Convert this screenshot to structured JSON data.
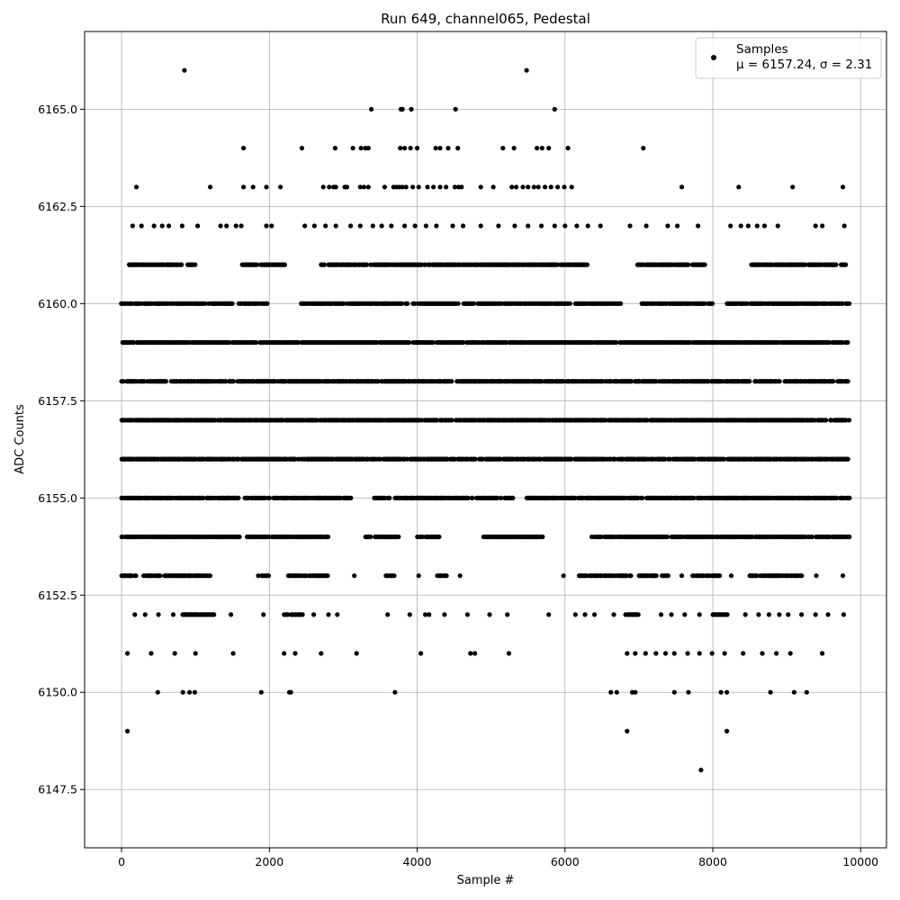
{
  "chart_data": {
    "type": "scatter",
    "title": "Run 649, channel065, Pedestal",
    "xlabel": "Sample #",
    "ylabel": "ADC Counts",
    "xlim": [
      -500,
      10350
    ],
    "ylim": [
      6146.0,
      6167.0
    ],
    "xticks": [
      0,
      2000,
      4000,
      6000,
      8000,
      10000
    ],
    "xtick_labels": [
      "0",
      "2000",
      "4000",
      "6000",
      "8000",
      "10000"
    ],
    "yticks": [
      6147.5,
      6150.0,
      6152.5,
      6155.0,
      6157.5,
      6160.0,
      6162.5,
      6165.0
    ],
    "ytick_labels": [
      "6147.5",
      "6150.0",
      "6152.5",
      "6155.0",
      "6157.5",
      "6160.0",
      "6162.5",
      "6165.0"
    ],
    "grid": true,
    "legend_position": "top-right",
    "marker_color": "#000000",
    "series": [
      {
        "name": "Samples",
        "legend_line2": "μ = 6157.24, σ = 2.31",
        "points": [
          [
            850,
            6166
          ],
          [
            5480,
            6166
          ],
          [
            3380,
            6165
          ],
          [
            3780,
            6165
          ],
          [
            3800,
            6165
          ],
          [
            3920,
            6165
          ],
          [
            4520,
            6165
          ],
          [
            5860,
            6165
          ],
          [
            1650,
            6164
          ],
          [
            2440,
            6164
          ],
          [
            2890,
            6164
          ],
          [
            3130,
            6164
          ],
          [
            3240,
            6164
          ],
          [
            3300,
            6164
          ],
          [
            3340,
            6164
          ],
          [
            3770,
            6164
          ],
          [
            3830,
            6164
          ],
          [
            3910,
            6164
          ],
          [
            4000,
            6164
          ],
          [
            4250,
            6164
          ],
          [
            4310,
            6164
          ],
          [
            4420,
            6164
          ],
          [
            4550,
            6164
          ],
          [
            5160,
            6164
          ],
          [
            5310,
            6164
          ],
          [
            5620,
            6164
          ],
          [
            5690,
            6164
          ],
          [
            5780,
            6164
          ],
          [
            6040,
            6164
          ],
          [
            7060,
            6164
          ],
          [
            200,
            6163
          ],
          [
            1200,
            6163
          ],
          [
            1650,
            6163
          ],
          [
            1780,
            6163
          ],
          [
            1960,
            6163
          ],
          [
            2150,
            6163
          ],
          [
            2730,
            6163
          ],
          [
            2810,
            6163
          ],
          [
            2870,
            6163
          ],
          [
            2900,
            6163
          ],
          [
            3020,
            6163
          ],
          [
            3050,
            6163
          ],
          [
            3230,
            6163
          ],
          [
            3280,
            6163
          ],
          [
            3340,
            6163
          ],
          [
            3560,
            6163
          ],
          [
            3680,
            6163
          ],
          [
            3720,
            6163
          ],
          [
            3760,
            6163
          ],
          [
            3800,
            6163
          ],
          [
            3850,
            6163
          ],
          [
            3940,
            6163
          ],
          [
            4020,
            6163
          ],
          [
            4140,
            6163
          ],
          [
            4220,
            6163
          ],
          [
            4310,
            6163
          ],
          [
            4390,
            6163
          ],
          [
            4510,
            6163
          ],
          [
            4560,
            6163
          ],
          [
            4600,
            6163
          ],
          [
            4860,
            6163
          ],
          [
            5030,
            6163
          ],
          [
            5280,
            6163
          ],
          [
            5340,
            6163
          ],
          [
            5430,
            6163
          ],
          [
            5500,
            6163
          ],
          [
            5580,
            6163
          ],
          [
            5640,
            6163
          ],
          [
            5730,
            6163
          ],
          [
            5810,
            6163
          ],
          [
            5900,
            6163
          ],
          [
            5990,
            6163
          ],
          [
            6090,
            6163
          ],
          [
            7580,
            6163
          ],
          [
            8350,
            6163
          ],
          [
            9080,
            6163
          ],
          [
            9760,
            6163
          ],
          [
            150,
            6162
          ],
          [
            270,
            6162
          ],
          [
            440,
            6162
          ],
          [
            550,
            6162
          ],
          [
            640,
            6162
          ],
          [
            820,
            6162
          ],
          [
            1030,
            6162
          ],
          [
            1340,
            6162
          ],
          [
            1420,
            6162
          ],
          [
            1550,
            6162
          ],
          [
            1620,
            6162
          ],
          [
            1960,
            6162
          ],
          [
            2030,
            6162
          ],
          [
            2480,
            6162
          ],
          [
            2610,
            6162
          ],
          [
            2760,
            6162
          ],
          [
            2900,
            6162
          ],
          [
            3100,
            6162
          ],
          [
            3230,
            6162
          ],
          [
            3400,
            6162
          ],
          [
            3520,
            6162
          ],
          [
            3650,
            6162
          ],
          [
            3830,
            6162
          ],
          [
            3970,
            6162
          ],
          [
            4120,
            6162
          ],
          [
            4260,
            6162
          ],
          [
            4480,
            6162
          ],
          [
            4620,
            6162
          ],
          [
            4860,
            6162
          ],
          [
            5100,
            6162
          ],
          [
            5320,
            6162
          ],
          [
            5500,
            6162
          ],
          [
            5680,
            6162
          ],
          [
            5860,
            6162
          ],
          [
            6000,
            6162
          ],
          [
            6160,
            6162
          ],
          [
            6310,
            6162
          ],
          [
            6480,
            6162
          ],
          [
            6880,
            6162
          ],
          [
            7100,
            6162
          ],
          [
            7390,
            6162
          ],
          [
            7520,
            6162
          ],
          [
            7800,
            6162
          ],
          [
            8240,
            6162
          ],
          [
            8380,
            6162
          ],
          [
            8480,
            6162
          ],
          [
            8600,
            6162
          ],
          [
            8700,
            6162
          ],
          [
            8880,
            6162
          ],
          [
            9390,
            6162
          ],
          [
            9480,
            6162
          ],
          [
            9780,
            6162
          ],
          [
            850,
            6153
          ],
          [
            1850,
            6153
          ],
          [
            3150,
            6153
          ],
          [
            4020,
            6153
          ],
          [
            4580,
            6153
          ],
          [
            5980,
            6153
          ],
          [
            7580,
            6153
          ],
          [
            8250,
            6153
          ],
          [
            9400,
            6153
          ],
          [
            9760,
            6153
          ],
          [
            180,
            6152
          ],
          [
            320,
            6152
          ],
          [
            500,
            6152
          ],
          [
            700,
            6152
          ],
          [
            860,
            6152
          ],
          [
            1000,
            6152
          ],
          [
            1180,
            6152
          ],
          [
            1480,
            6152
          ],
          [
            1920,
            6152
          ],
          [
            2200,
            6152
          ],
          [
            2350,
            6152
          ],
          [
            2600,
            6152
          ],
          [
            2800,
            6152
          ],
          [
            2920,
            6152
          ],
          [
            3600,
            6152
          ],
          [
            3900,
            6152
          ],
          [
            4110,
            6152
          ],
          [
            4160,
            6152
          ],
          [
            4370,
            6152
          ],
          [
            4680,
            6152
          ],
          [
            4980,
            6152
          ],
          [
            5220,
            6152
          ],
          [
            5780,
            6152
          ],
          [
            6140,
            6152
          ],
          [
            6270,
            6152
          ],
          [
            6400,
            6152
          ],
          [
            6660,
            6152
          ],
          [
            6820,
            6152
          ],
          [
            6950,
            6152
          ],
          [
            7300,
            6152
          ],
          [
            7440,
            6152
          ],
          [
            7620,
            6152
          ],
          [
            7820,
            6152
          ],
          [
            8020,
            6152
          ],
          [
            8440,
            6152
          ],
          [
            8620,
            6152
          ],
          [
            8760,
            6152
          ],
          [
            8900,
            6152
          ],
          [
            9020,
            6152
          ],
          [
            9200,
            6152
          ],
          [
            9390,
            6152
          ],
          [
            9560,
            6152
          ],
          [
            9770,
            6152
          ],
          [
            80,
            6151
          ],
          [
            400,
            6151
          ],
          [
            720,
            6151
          ],
          [
            1000,
            6151
          ],
          [
            1510,
            6151
          ],
          [
            2200,
            6151
          ],
          [
            2350,
            6151
          ],
          [
            2700,
            6151
          ],
          [
            3180,
            6151
          ],
          [
            4050,
            6151
          ],
          [
            4720,
            6151
          ],
          [
            4780,
            6151
          ],
          [
            5240,
            6151
          ],
          [
            6840,
            6151
          ],
          [
            6950,
            6151
          ],
          [
            7090,
            6151
          ],
          [
            7230,
            6151
          ],
          [
            7360,
            6151
          ],
          [
            7480,
            6151
          ],
          [
            7660,
            6151
          ],
          [
            7820,
            6151
          ],
          [
            7990,
            6151
          ],
          [
            8160,
            6151
          ],
          [
            8410,
            6151
          ],
          [
            8670,
            6151
          ],
          [
            8860,
            6151
          ],
          [
            9050,
            6151
          ],
          [
            9480,
            6151
          ],
          [
            490,
            6150
          ],
          [
            830,
            6150
          ],
          [
            920,
            6150
          ],
          [
            990,
            6150
          ],
          [
            1890,
            6150
          ],
          [
            2270,
            6150
          ],
          [
            2290,
            6150
          ],
          [
            3700,
            6150
          ],
          [
            6620,
            6150
          ],
          [
            6700,
            6150
          ],
          [
            6910,
            6150
          ],
          [
            6950,
            6150
          ],
          [
            7480,
            6150
          ],
          [
            7670,
            6150
          ],
          [
            8110,
            6150
          ],
          [
            8190,
            6150
          ],
          [
            8780,
            6150
          ],
          [
            9100,
            6150
          ],
          [
            9270,
            6150
          ],
          [
            80,
            6149
          ],
          [
            6840,
            6149
          ],
          [
            8190,
            6149
          ],
          [
            7840,
            6148
          ]
        ],
        "dense_levels": [
          {
            "y": 6161,
            "segments": [
              [
                100,
                1000
              ],
              [
                1620,
                2220
              ],
              [
                2700,
                6300
              ],
              [
                6980,
                7900
              ],
              [
                8520,
                9800
              ]
            ]
          },
          {
            "y": 6160,
            "segments": [
              [
                0,
                1500
              ],
              [
                1590,
                1970
              ],
              [
                2430,
                6780
              ],
              [
                7040,
                8000
              ],
              [
                8190,
                9850
              ]
            ]
          },
          {
            "y": 6159,
            "segments": [
              [
                0,
                9850
              ]
            ]
          },
          {
            "y": 6158,
            "segments": [
              [
                0,
                9850
              ]
            ]
          },
          {
            "y": 6157,
            "segments": [
              [
                0,
                9850
              ]
            ]
          },
          {
            "y": 6156,
            "segments": [
              [
                0,
                9850
              ]
            ]
          },
          {
            "y": 6155,
            "segments": [
              [
                0,
                1600
              ],
              [
                1670,
                3100
              ],
              [
                3420,
                5300
              ],
              [
                5480,
                9850
              ]
            ]
          },
          {
            "y": 6154,
            "segments": [
              [
                0,
                1600
              ],
              [
                1700,
                2000
              ],
              [
                2040,
                2800
              ],
              [
                3300,
                3750
              ],
              [
                4000,
                4300
              ],
              [
                4900,
                5700
              ],
              [
                6350,
                9850
              ]
            ]
          },
          {
            "y": 6153,
            "segments": [
              [
                0,
                200
              ],
              [
                300,
                1200
              ],
              [
                1880,
                2000
              ],
              [
                2230,
                2800
              ],
              [
                3580,
                3700
              ],
              [
                4270,
                4400
              ],
              [
                6190,
                6900
              ],
              [
                7000,
                7400
              ],
              [
                7730,
                8100
              ],
              [
                8500,
                9200
              ]
            ]
          },
          {
            "y": 6152,
            "segments": [
              [
                830,
                1250
              ],
              [
                2210,
                2450
              ],
              [
                6850,
                7000
              ],
              [
                8000,
                8200
              ]
            ]
          }
        ],
        "dense_step": 14
      }
    ]
  }
}
